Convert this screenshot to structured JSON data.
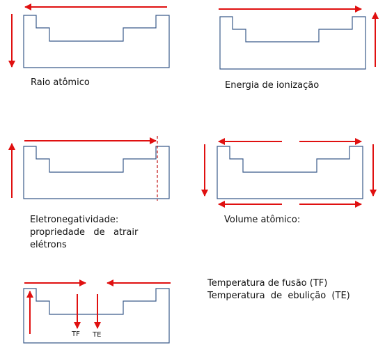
{
  "colors": {
    "arrow": "#e01010",
    "outline": "#3a5a8a",
    "dashed": "#c01010"
  },
  "panels": {
    "atomic_radius": {
      "label": "Raio atômico"
    },
    "ionization_energy": {
      "label": "Energia de ionização"
    },
    "electronegativity": {
      "label_lines": [
        "Eletronegatividade:",
        "propriedade   de   atrair",
        "elétrons"
      ]
    },
    "atomic_volume": {
      "label": "Volume atômico:"
    },
    "melting_boiling": {
      "label_lines": [
        "Temperatura de fusão (TF)",
        "Temperatura  de  ebulição  (TE)"
      ],
      "tf_label": "TF",
      "te_label": "TE"
    }
  }
}
